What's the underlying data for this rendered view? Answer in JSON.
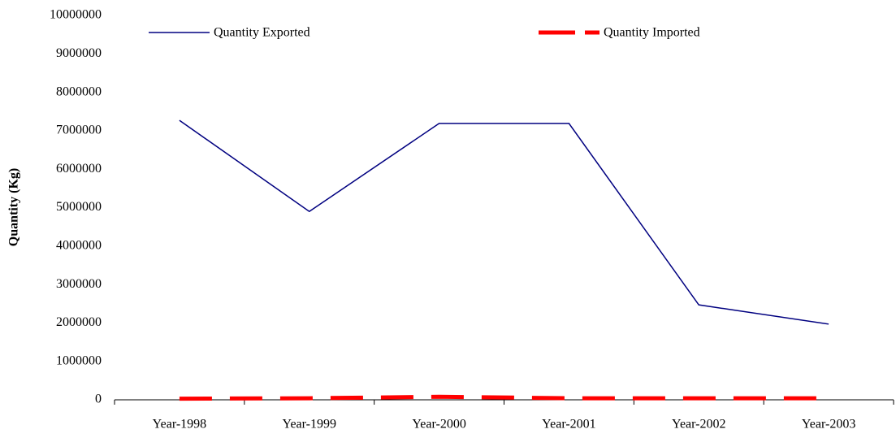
{
  "chart_data": {
    "type": "line",
    "y_label": "Quantity  (Kg)",
    "categories": [
      "Year-1998",
      "Year-1999",
      "Year-2000",
      "Year-2001",
      "Year-2002",
      "Year-2003"
    ],
    "series": [
      {
        "name": "Quantity Exported",
        "color": "#000080",
        "style": "solid",
        "values": [
          7270000,
          4900000,
          7190000,
          7190000,
          2470000,
          1970000
        ]
      },
      {
        "name": "Quantity Imported",
        "color": "#ff0000",
        "style": "dashed",
        "values": [
          30000,
          40000,
          80000,
          40000,
          40000,
          40000
        ]
      }
    ],
    "ylim": [
      0,
      10000000
    ],
    "yticks": [
      0,
      1000000,
      2000000,
      3000000,
      4000000,
      5000000,
      6000000,
      7000000,
      8000000,
      9000000,
      10000000
    ],
    "grid": false
  }
}
